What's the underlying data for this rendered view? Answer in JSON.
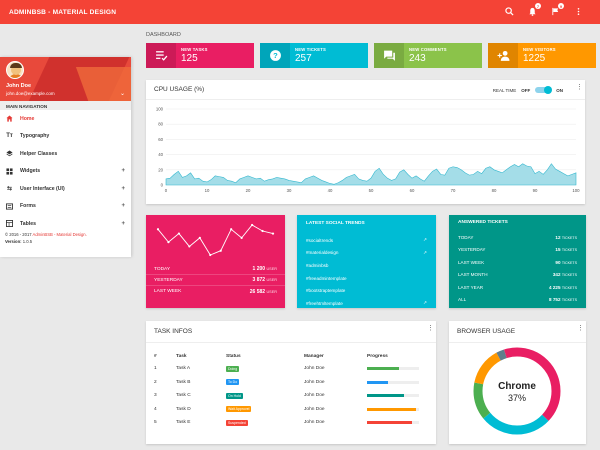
{
  "brand": "ADMINBSB - MATERIAL DESIGN",
  "topbar": {
    "notif_count": "7",
    "task_count": "9"
  },
  "user": {
    "name": "John Doe",
    "email": "john.doe@example.com"
  },
  "nav": {
    "header": "MAIN NAVIGATION",
    "items": [
      {
        "label": "Home",
        "icon": "home-icon"
      },
      {
        "label": "Typography",
        "icon": "text-icon"
      },
      {
        "label": "Helper Classes",
        "icon": "layers-icon"
      },
      {
        "label": "Widgets",
        "icon": "widgets-icon"
      },
      {
        "label": "User Interface (UI)",
        "icon": "swap-icon"
      },
      {
        "label": "Forms",
        "icon": "forms-icon"
      },
      {
        "label": "Tables",
        "icon": "table-icon"
      }
    ]
  },
  "footer": {
    "copyright": "© 2016 - 2017",
    "brand": "AdminBSB - Material Design.",
    "version_label": "Version:",
    "version": "1.0.5"
  },
  "dashboard_title": "DASHBOARD",
  "info_boxes": [
    {
      "label": "NEW TASKS",
      "value": "125",
      "color": "#e91e63",
      "icon": "playlist-icon"
    },
    {
      "label": "NEW TICKETS",
      "value": "257",
      "color": "#00bcd4",
      "icon": "help-icon"
    },
    {
      "label": "NEW COMMENTS",
      "value": "243",
      "color": "#8bc34a",
      "icon": "forum-icon"
    },
    {
      "label": "NEW VISITORS",
      "value": "1225",
      "color": "#ff9800",
      "icon": "person-add-icon"
    }
  ],
  "cpu": {
    "title": "CPU USAGE (%)",
    "realtime_label": "REAL TIME",
    "off": "OFF",
    "on": "ON"
  },
  "chart_data": {
    "type": "area",
    "title": "CPU USAGE (%)",
    "xlim": [
      0,
      100
    ],
    "ylim": [
      0,
      100
    ],
    "x_ticks": [
      0,
      10,
      20,
      30,
      40,
      50,
      60,
      70,
      80,
      90,
      100
    ],
    "y_ticks": [
      0,
      20,
      40,
      60,
      80,
      100
    ],
    "y": [
      8,
      9,
      14,
      18,
      10,
      12,
      16,
      8,
      9,
      5,
      4,
      7,
      12,
      11,
      10,
      6,
      5,
      3,
      8,
      10,
      12,
      10,
      8,
      9,
      5,
      7,
      8,
      10,
      9,
      8,
      6,
      5,
      4,
      3,
      8,
      10,
      12,
      9,
      6,
      4,
      2,
      1,
      3,
      6,
      10,
      12,
      14,
      8,
      6,
      5,
      9,
      18,
      22,
      14,
      9,
      6,
      8,
      17,
      20,
      14,
      9,
      12,
      8,
      5,
      12,
      18,
      21,
      14,
      13,
      22,
      24,
      23,
      20,
      16,
      13,
      14,
      18,
      15,
      22,
      24,
      20,
      18,
      16,
      20,
      24,
      27,
      24,
      28,
      25,
      24,
      15,
      18,
      14,
      20,
      28,
      21,
      18,
      15,
      12,
      14,
      16
    ]
  },
  "visits": {
    "color": "#e91e63",
    "rows": [
      {
        "label": "TODAY",
        "value": "1 200",
        "unit": "USER"
      },
      {
        "label": "YESTERDAY",
        "value": "3 872",
        "unit": "USER"
      },
      {
        "label": "LAST WEEK",
        "value": "26 582",
        "unit": "USER"
      }
    ],
    "spark": [
      60,
      45,
      55,
      40,
      50,
      30,
      35,
      60,
      50,
      65,
      58,
      55
    ]
  },
  "social": {
    "title": "LATEST SOCIAL TRENDS",
    "color": "#00bcd4",
    "items": [
      "#socialtrends",
      "#materialdesign",
      "#adminbsb",
      "#freeadmintemplate",
      "#bootstraptemplate",
      "#freehtmltemplate"
    ]
  },
  "tickets": {
    "title": "ANSWERED TICKETS",
    "color": "#009688",
    "rows": [
      {
        "label": "TODAY",
        "value": "12",
        "unit": "TICKETS"
      },
      {
        "label": "YESTERDAY",
        "value": "15",
        "unit": "TICKETS"
      },
      {
        "label": "LAST WEEK",
        "value": "90",
        "unit": "TICKETS"
      },
      {
        "label": "LAST MONTH",
        "value": "342",
        "unit": "TICKETS"
      },
      {
        "label": "LAST YEAR",
        "value": "4 225",
        "unit": "TICKETS"
      },
      {
        "label": "ALL",
        "value": "8 752",
        "unit": "TICKETS"
      }
    ]
  },
  "tasks": {
    "title": "TASK INFOS",
    "headers": [
      "#",
      "Task",
      "Status",
      "Manager",
      "Progress"
    ],
    "rows": [
      {
        "num": "1",
        "task": "Task A",
        "status": "Doing",
        "status_color": "#4caf50",
        "manager": "John Doe",
        "progress": 62,
        "bar_color": "#4caf50"
      },
      {
        "num": "2",
        "task": "Task B",
        "status": "To Do",
        "status_color": "#2196f3",
        "manager": "John Doe",
        "progress": 40,
        "bar_color": "#2196f3"
      },
      {
        "num": "3",
        "task": "Task C",
        "status": "On Hold",
        "status_color": "#009688",
        "manager": "John Doe",
        "progress": 72,
        "bar_color": "#009688"
      },
      {
        "num": "4",
        "task": "Task D",
        "status": "Wait Approvel",
        "status_color": "#ff9800",
        "manager": "John Doe",
        "progress": 95,
        "bar_color": "#ff9800"
      },
      {
        "num": "5",
        "task": "Task E",
        "status": "Suspended",
        "status_color": "#f44336",
        "manager": "John Doe",
        "progress": 87,
        "bar_color": "#f44336"
      }
    ]
  },
  "browser": {
    "title": "BROWSER USAGE",
    "label": "Chrome",
    "value": "37%",
    "segments": [
      {
        "value": 37,
        "color": "#e91e63"
      },
      {
        "value": 27,
        "color": "#00bcd4"
      },
      {
        "value": 14,
        "color": "#4caf50"
      },
      {
        "value": 14,
        "color": "#ff9800"
      },
      {
        "value": 3,
        "color": "#607d8b"
      },
      {
        "value": 5,
        "color": "#e91e63"
      }
    ]
  }
}
